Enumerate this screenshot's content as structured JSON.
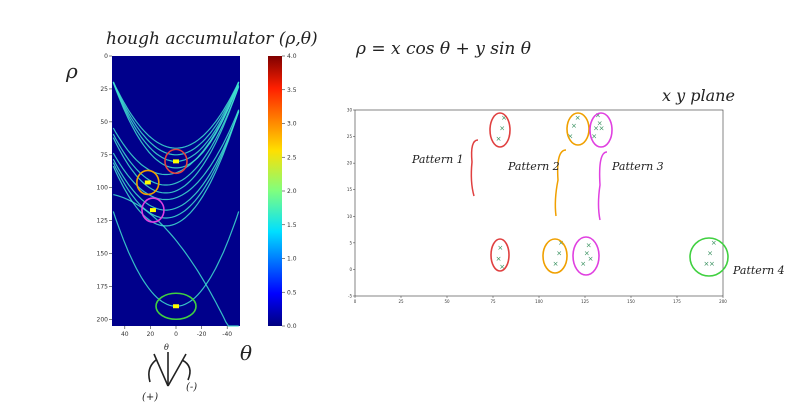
{
  "annotations": {
    "accumulator_title": "hough accumulator (ρ,θ)",
    "rho_label": "ρ",
    "theta_label": "θ",
    "equation": "ρ = x cos θ + y sin θ",
    "plane_title": "x y plane",
    "theta_marker": "θ",
    "minus_sign": "(-)",
    "plus_sign": "(+)"
  },
  "colors": {
    "accumulator_bg": "#00008b",
    "curve": "#40e0d0",
    "peak": "#ffff00",
    "pattern1": "#e04040",
    "pattern2": "#f0a000",
    "pattern3": "#e040e0",
    "pattern4": "#40d040",
    "scatter_marker": "#2e8b57"
  },
  "chart_data": [
    {
      "type": "heatmap",
      "title": "",
      "x_axis": {
        "reversed": true,
        "range": [
          50,
          -50
        ],
        "ticks": [
          40,
          20,
          0,
          -20,
          -40
        ]
      },
      "y_axis": {
        "reversed": true,
        "range": [
          0,
          205
        ],
        "ticks": [
          0,
          25,
          50,
          75,
          100,
          125,
          150,
          175,
          200
        ]
      },
      "colorbar": {
        "min": 0,
        "max": 4,
        "ticks": [
          "0.0",
          "0.5",
          "1.0",
          "1.5",
          "2.0",
          "2.5",
          "3.0",
          "3.5",
          "4.0"
        ]
      },
      "circled_peaks": [
        {
          "theta": 0,
          "rho": 80,
          "color": "pattern1"
        },
        {
          "theta": 22,
          "rho": 96,
          "color": "pattern2"
        },
        {
          "theta": 18,
          "rho": 117,
          "color": "pattern3"
        },
        {
          "theta": 0,
          "rho": 190,
          "color": "pattern4"
        }
      ]
    },
    {
      "type": "scatter",
      "title": "",
      "xlim": [
        0,
        200
      ],
      "ylim": [
        -5,
        30
      ],
      "x_ticks": [
        "0",
        "25",
        "50",
        "75",
        "100",
        "125",
        "150",
        "175",
        "200"
      ],
      "y_ticks": [
        "-5",
        "0",
        "5",
        "10",
        "15",
        "20",
        "25",
        "30"
      ],
      "points": [
        {
          "x": 78,
          "y": 24.5
        },
        {
          "x": 80,
          "y": 26.5
        },
        {
          "x": 81,
          "y": 28.5
        },
        {
          "x": 79,
          "y": 4
        },
        {
          "x": 78,
          "y": 2
        },
        {
          "x": 80,
          "y": 0.5
        },
        {
          "x": 117,
          "y": 25
        },
        {
          "x": 119,
          "y": 27
        },
        {
          "x": 121,
          "y": 28.5
        },
        {
          "x": 130,
          "y": 25
        },
        {
          "x": 131,
          "y": 26.5
        },
        {
          "x": 133,
          "y": 27.5
        },
        {
          "x": 132,
          "y": 29
        },
        {
          "x": 134,
          "y": 26.5
        },
        {
          "x": 109,
          "y": 1
        },
        {
          "x": 111,
          "y": 3
        },
        {
          "x": 112,
          "y": 5
        },
        {
          "x": 124,
          "y": 1
        },
        {
          "x": 126,
          "y": 3
        },
        {
          "x": 127,
          "y": 4.5
        },
        {
          "x": 128,
          "y": 2
        },
        {
          "x": 191,
          "y": 1
        },
        {
          "x": 193,
          "y": 3
        },
        {
          "x": 195,
          "y": 5
        },
        {
          "x": 194,
          "y": 1
        }
      ],
      "patterns": [
        {
          "label": "Pattern 1",
          "color": "pattern1"
        },
        {
          "label": "Pattern 2",
          "color": "pattern2"
        },
        {
          "label": "Pattern 3",
          "color": "pattern3"
        },
        {
          "label": "Pattern 4",
          "color": "pattern4"
        }
      ]
    }
  ]
}
